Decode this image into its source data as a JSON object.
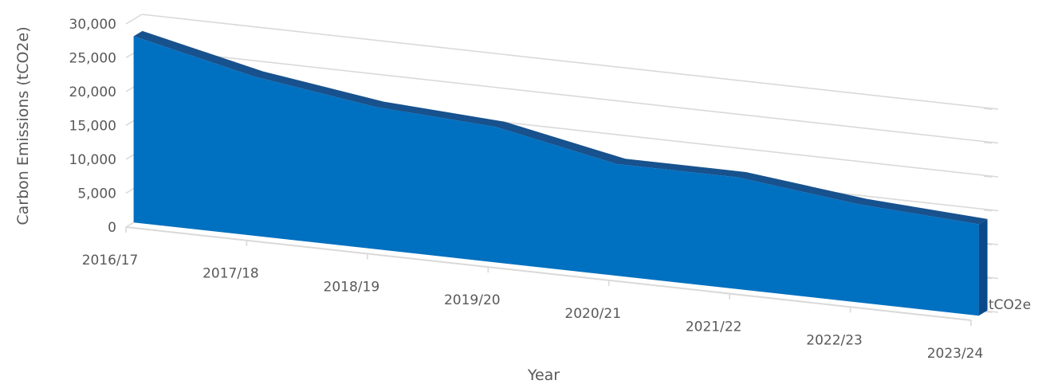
{
  "chart_data": {
    "type": "area",
    "style": "3d",
    "categories": [
      "2016/17",
      "2017/18",
      "2018/19",
      "2019/20",
      "2020/21",
      "2021/22",
      "2022/23",
      "2023/24"
    ],
    "series": [
      {
        "name": "tCO2e",
        "values": [
          27500,
          23500,
          21000,
          20000,
          16500,
          16500,
          14500,
          13500
        ]
      }
    ],
    "y_ticks": [
      "0",
      "5,000",
      "10,000",
      "15,000",
      "20,000",
      "25,000",
      "30,000"
    ],
    "ylim": [
      0,
      30000
    ],
    "xlabel": "Year",
    "ylabel": "Carbon Emissions (tCO2e)",
    "grid": true,
    "colors": {
      "front": "#0070C0",
      "top": "#17528E",
      "side": "#0B4A8A",
      "grid": "#D9D9D9",
      "text": "#595959"
    }
  }
}
